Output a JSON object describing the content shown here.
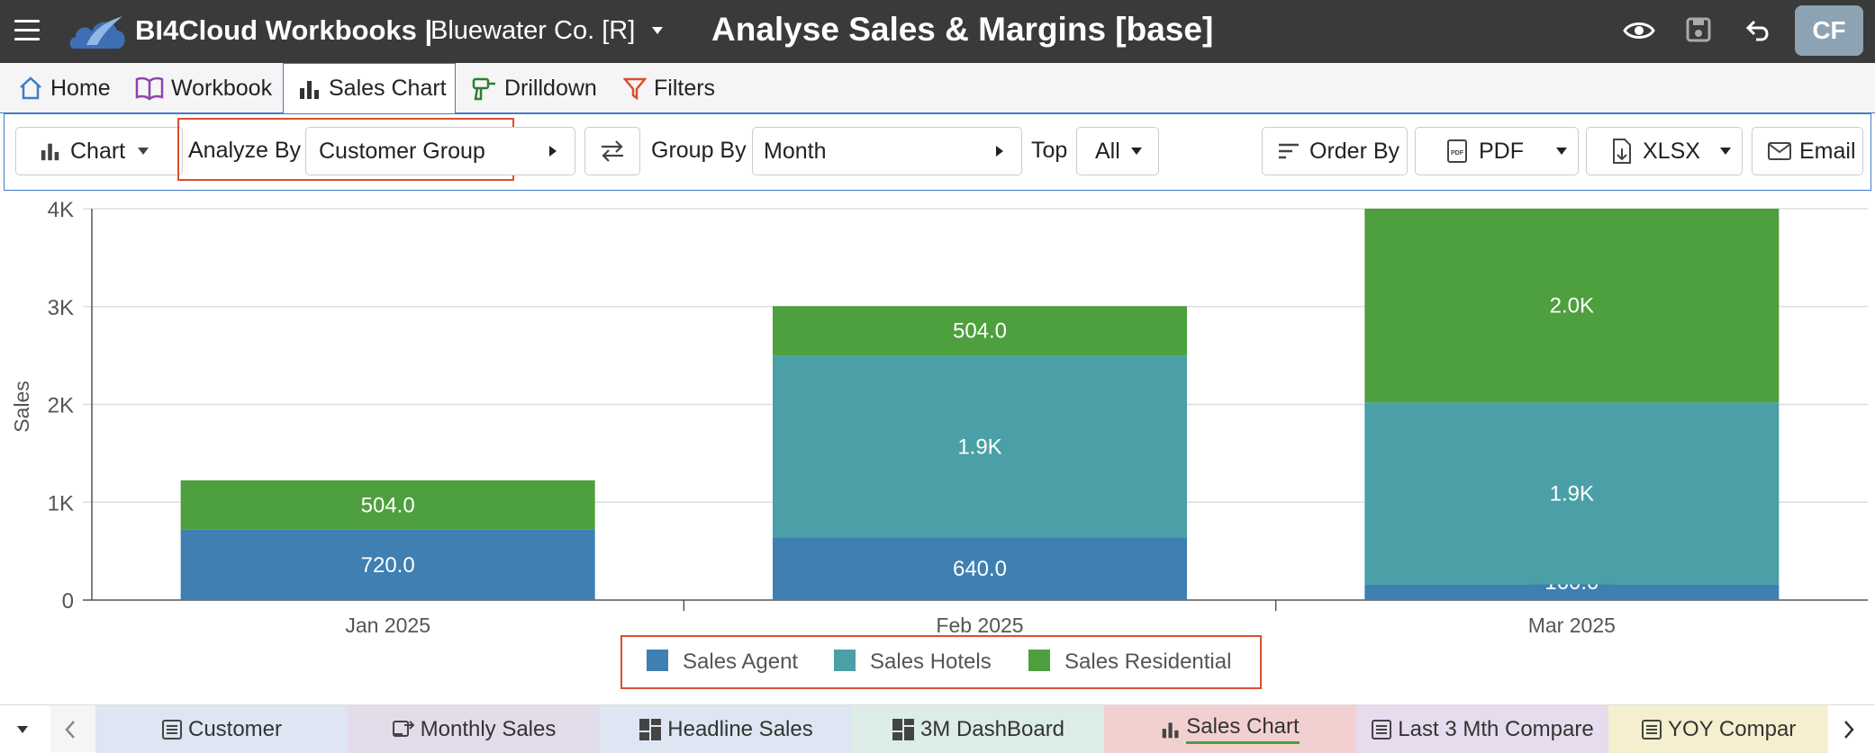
{
  "header": {
    "app_title": "BI4Cloud Workbooks |",
    "company": "Bluewater Co. [R]",
    "page_title": "Analyse Sales & Margins [base]",
    "avatar_initials": "CF"
  },
  "nav_tabs": [
    {
      "label": "Home",
      "icon": "home-icon"
    },
    {
      "label": "Workbook",
      "icon": "book-icon"
    },
    {
      "label": "Sales Chart",
      "icon": "bar-chart-icon",
      "active": true
    },
    {
      "label": "Drilldown",
      "icon": "drill-icon"
    },
    {
      "label": "Filters",
      "icon": "filter-icon"
    }
  ],
  "toolbar": {
    "chart_label": "Chart",
    "analyze_by_label": "Analyze By",
    "analyze_by_value": "Customer Group",
    "group_by_label": "Group By",
    "group_by_value": "Month",
    "top_label": "Top",
    "top_value": "All",
    "order_by_label": "Order By",
    "pdf_label": "PDF",
    "xlsx_label": "XLSX",
    "email_label": "Email"
  },
  "chart_data": {
    "type": "bar",
    "stacked": true,
    "categories": [
      "Jan 2025",
      "Feb 2025",
      "Mar 2025"
    ],
    "ylabel": "Sales",
    "ylim": [
      0,
      4000
    ],
    "yticks": [
      {
        "value": 0,
        "label": "0"
      },
      {
        "value": 1000,
        "label": "1K"
      },
      {
        "value": 2000,
        "label": "2K"
      },
      {
        "value": 3000,
        "label": "3K"
      },
      {
        "value": 4000,
        "label": "4K"
      }
    ],
    "series": [
      {
        "name": "Sales Agent",
        "color": "#3f7fb1",
        "values": [
          720,
          640,
          160
        ],
        "labels": [
          "720.0",
          "640.0",
          "160.0"
        ]
      },
      {
        "name": "Sales Hotels",
        "color": "#4aa0a6",
        "values": [
          0,
          1860,
          1860
        ],
        "labels": [
          "",
          "1.9K",
          "1.9K"
        ]
      },
      {
        "name": "Sales Residential",
        "color": "#4e9f3d",
        "values": [
          504,
          504,
          1980
        ],
        "labels": [
          "504.0",
          "504.0",
          "2.0K"
        ]
      }
    ],
    "legend_position": "bottom",
    "grid": true
  },
  "bottom_tabs": [
    {
      "label": "Customer",
      "icon": "list-icon",
      "color": "#dde6f2"
    },
    {
      "label": "Monthly Sales",
      "icon": "transfer-icon",
      "color": "#e3dcea"
    },
    {
      "label": "Headline Sales",
      "icon": "dashboard-icon",
      "color": "#dde6f2"
    },
    {
      "label": "3M DashBoard",
      "icon": "dashboard-icon",
      "color": "#dcece6"
    },
    {
      "label": "Sales Chart",
      "icon": "bar-chart-icon",
      "color": "#f3d0d0",
      "active": true
    },
    {
      "label": "Last 3 Mth Compare",
      "icon": "list-icon",
      "color": "#e6dcee"
    },
    {
      "label": "YOY Compar",
      "icon": "list-icon",
      "color": "#f6efcf"
    }
  ]
}
